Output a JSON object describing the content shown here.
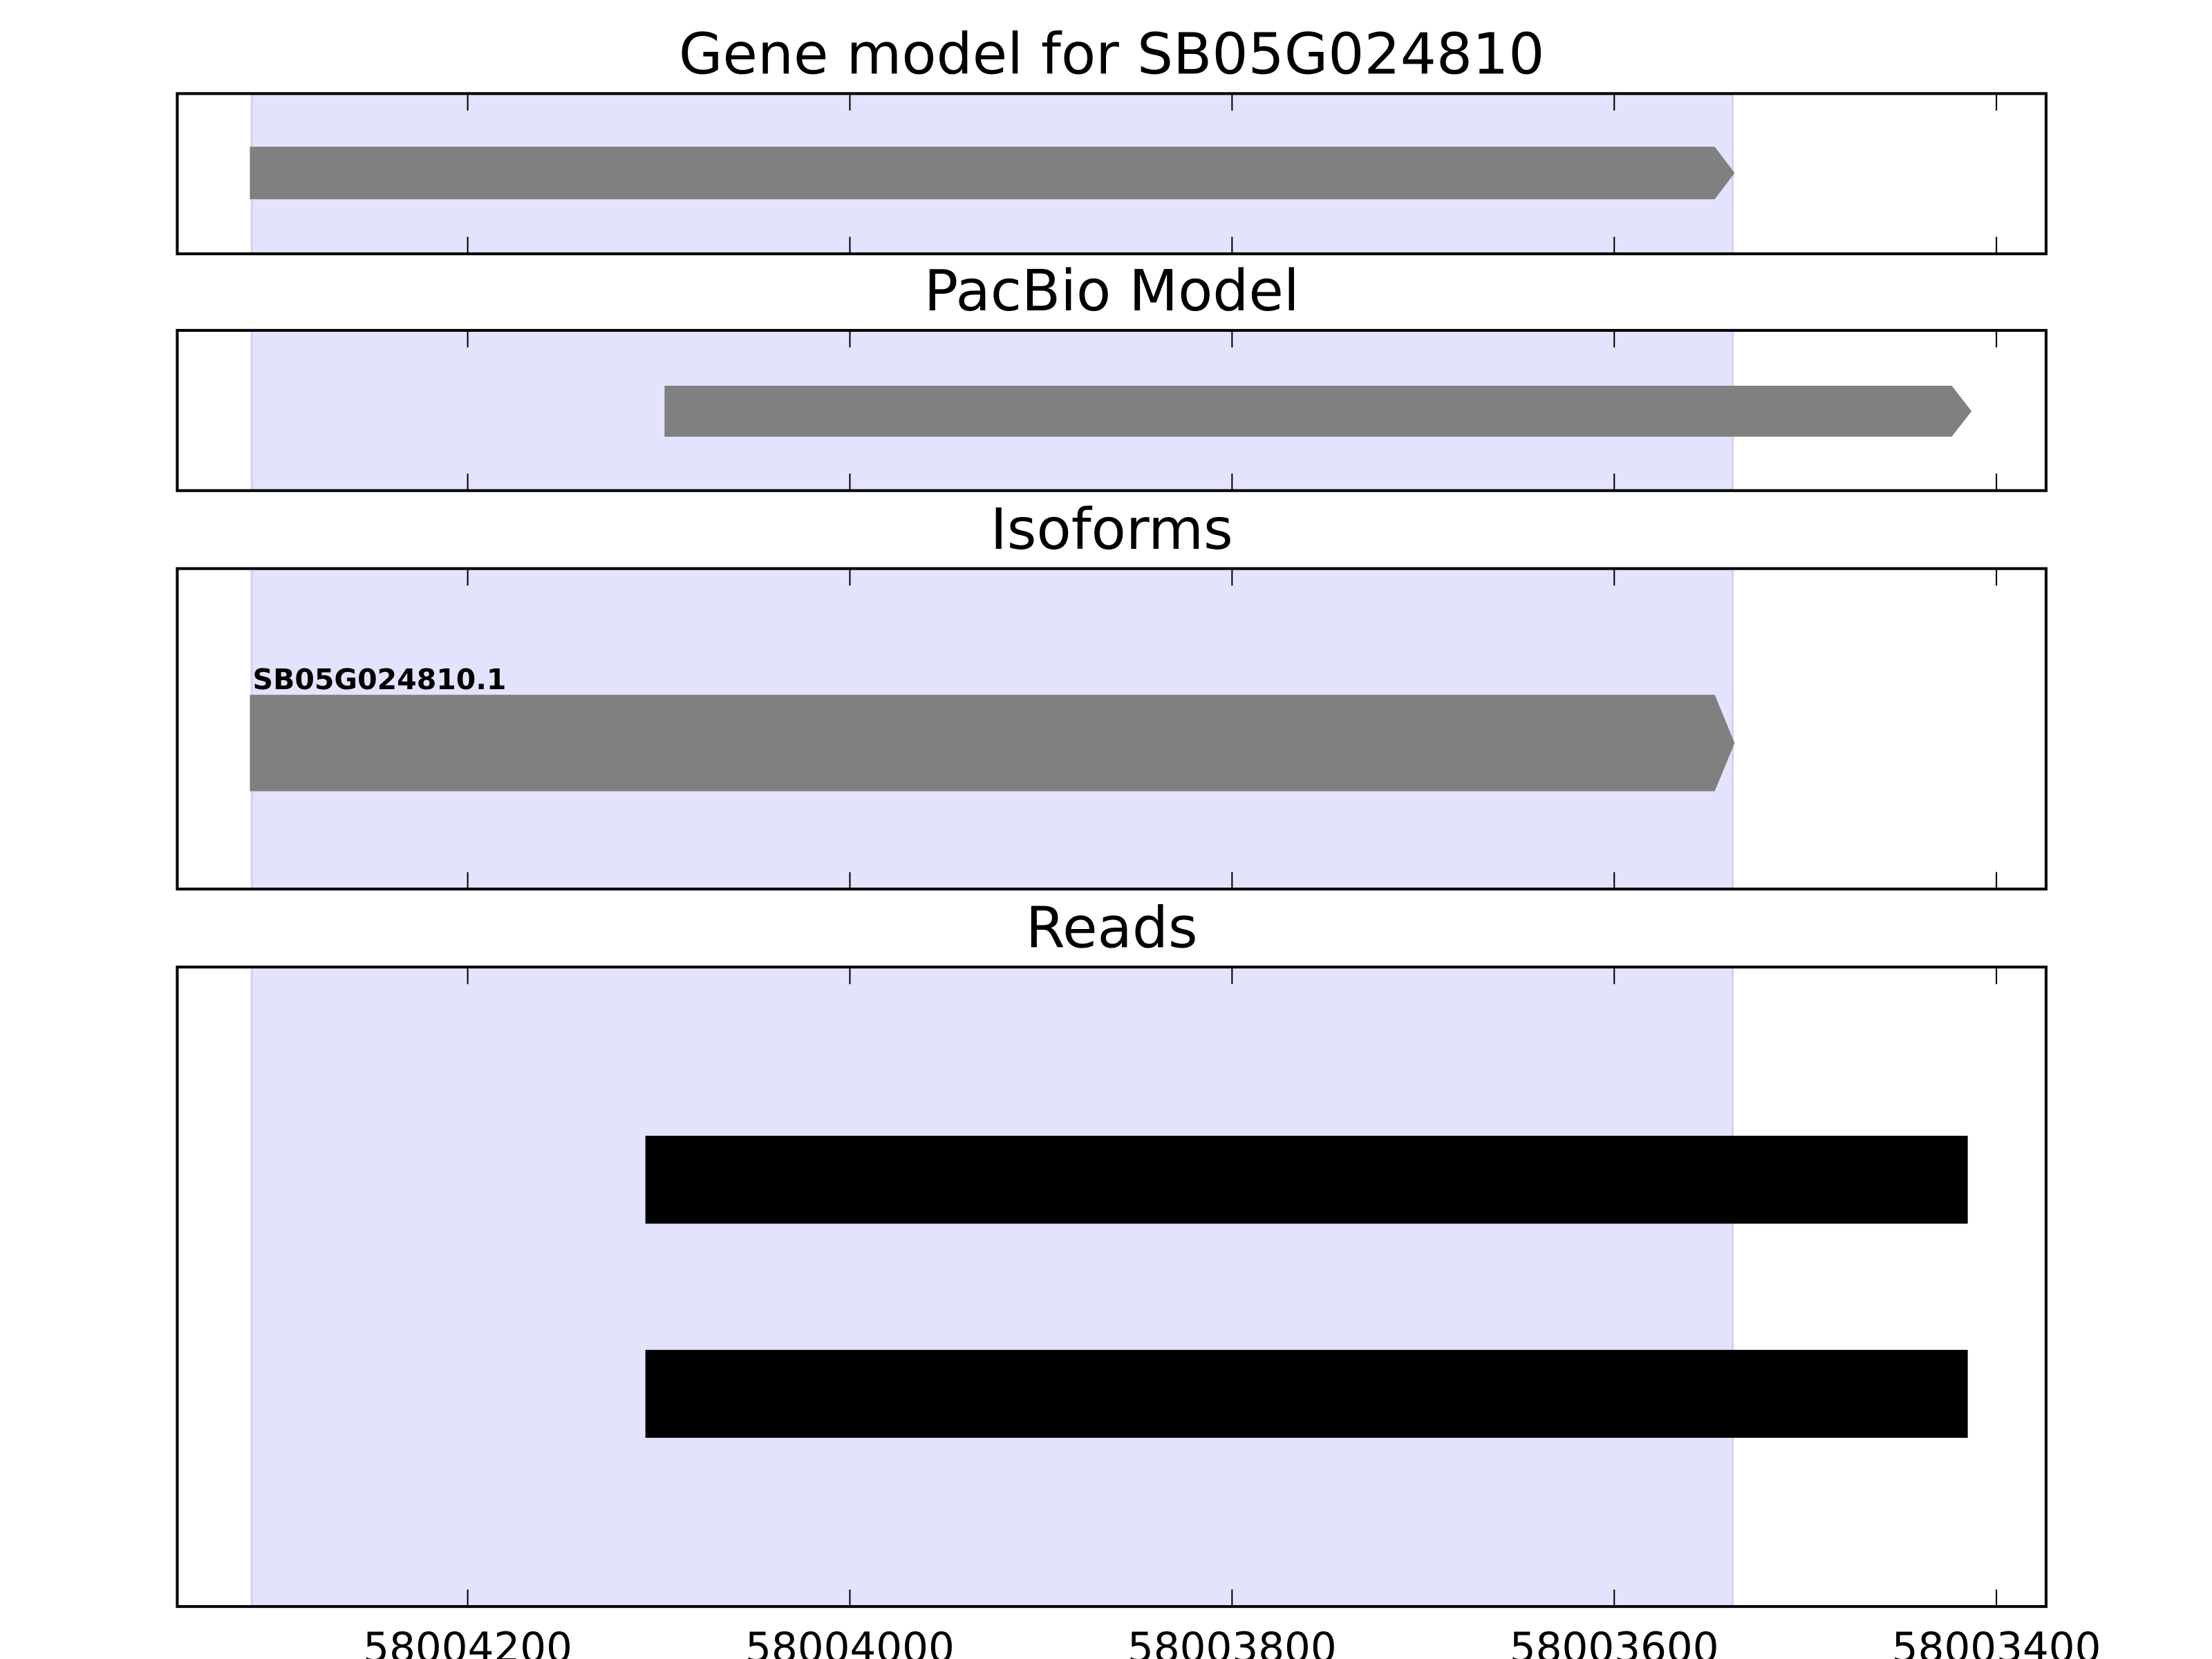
{
  "chart_data": {
    "type": "gene-track",
    "xlim": [
      58004352,
      58003374
    ],
    "x_reversed": true,
    "x_ticks": [
      58004200,
      58004000,
      58003800,
      58003600,
      58003400
    ],
    "x_tick_labels": [
      "58004200",
      "58004000",
      "58003800",
      "58003600",
      "58003400"
    ],
    "shaded_region": {
      "start": 58004313,
      "end": 58003538,
      "color": "#e3e3fd"
    },
    "panels": [
      {
        "title": "Gene model for SB05G024810",
        "features": [
          {
            "start": 58004314,
            "end": 58003537,
            "strand": "-",
            "shape": "arrow",
            "color": "#808080"
          }
        ]
      },
      {
        "title": "PacBio Model",
        "features": [
          {
            "start": 58004097,
            "end": 58003413,
            "strand": "-",
            "shape": "arrow",
            "color": "#808080"
          }
        ]
      },
      {
        "title": "Isoforms",
        "features": [
          {
            "label": "SB05G024810.1",
            "start": 58004314,
            "end": 58003537,
            "strand": "-",
            "shape": "arrow",
            "color": "#808080"
          }
        ]
      },
      {
        "title": "Reads",
        "features": [
          {
            "start": 58004107,
            "end": 58003415,
            "shape": "bar",
            "color": "#000000"
          },
          {
            "start": 58004107,
            "end": 58003415,
            "shape": "bar",
            "color": "#000000"
          }
        ]
      }
    ]
  }
}
